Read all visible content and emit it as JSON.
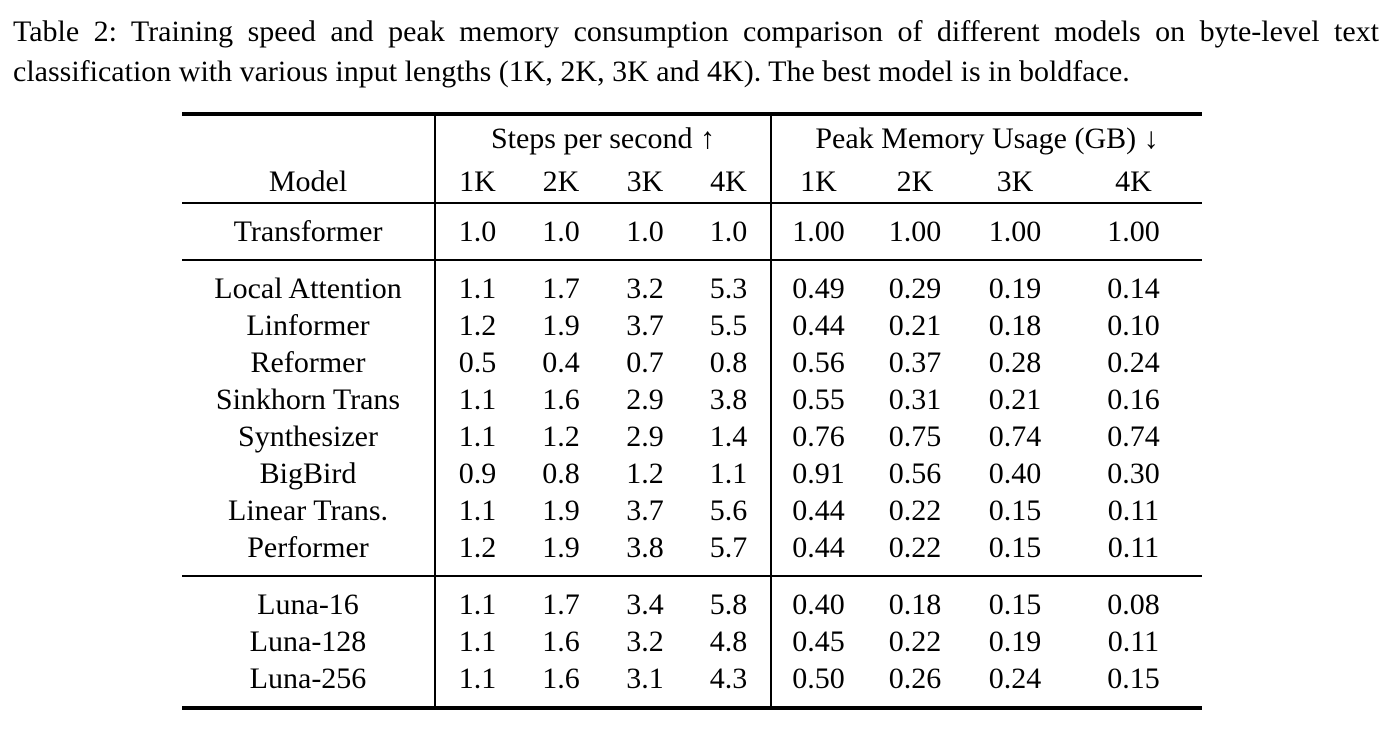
{
  "caption": "Table 2: Training speed and peak memory consumption comparison of different models on byte-level text classification with various input lengths (1K, 2K, 3K and 4K). The best model is in boldface.",
  "table": {
    "model_header": "Model",
    "group_headers": [
      "Steps per second ↑",
      "Peak Memory Usage (GB) ↓"
    ],
    "sub_headers": [
      "1K",
      "2K",
      "3K",
      "4K",
      "1K",
      "2K",
      "3K",
      "4K"
    ],
    "sections": [
      {
        "name": "baseline",
        "rows": [
          {
            "model": "Transformer",
            "values": [
              "1.0",
              "1.0",
              "1.0",
              "1.0",
              "1.00",
              "1.00",
              "1.00",
              "1.00"
            ],
            "bold": [
              false,
              false,
              false,
              false,
              false,
              false,
              false,
              false
            ]
          }
        ]
      },
      {
        "name": "efficient-attention",
        "rows": [
          {
            "model": "Local Attention",
            "values": [
              "1.1",
              "1.7",
              "3.2",
              "5.3",
              "0.49",
              "0.29",
              "0.19",
              "0.14"
            ],
            "bold": [
              false,
              false,
              false,
              false,
              false,
              false,
              false,
              false
            ]
          },
          {
            "model": "Linformer",
            "values": [
              "1.2",
              "1.9",
              "3.7",
              "5.5",
              "0.44",
              "0.21",
              "0.18",
              "0.10"
            ],
            "bold": [
              true,
              true,
              false,
              false,
              false,
              false,
              false,
              false
            ]
          },
          {
            "model": "Reformer",
            "values": [
              "0.5",
              "0.4",
              "0.7",
              "0.8",
              "0.56",
              "0.37",
              "0.28",
              "0.24"
            ],
            "bold": [
              false,
              false,
              false,
              false,
              false,
              false,
              false,
              false
            ]
          },
          {
            "model": "Sinkhorn Trans",
            "values": [
              "1.1",
              "1.6",
              "2.9",
              "3.8",
              "0.55",
              "0.31",
              "0.21",
              "0.16"
            ],
            "bold": [
              false,
              false,
              false,
              false,
              false,
              false,
              false,
              false
            ]
          },
          {
            "model": "Synthesizer",
            "values": [
              "1.1",
              "1.2",
              "2.9",
              "1.4",
              "0.76",
              "0.75",
              "0.74",
              "0.74"
            ],
            "bold": [
              false,
              false,
              false,
              false,
              false,
              false,
              false,
              false
            ]
          },
          {
            "model": "BigBird",
            "values": [
              "0.9",
              "0.8",
              "1.2",
              "1.1",
              "0.91",
              "0.56",
              "0.40",
              "0.30"
            ],
            "bold": [
              false,
              false,
              false,
              false,
              false,
              false,
              false,
              false
            ]
          },
          {
            "model": "Linear Trans.",
            "values": [
              "1.1",
              "1.9",
              "3.7",
              "5.6",
              "0.44",
              "0.22",
              "0.15",
              "0.11"
            ],
            "bold": [
              false,
              false,
              false,
              false,
              false,
              false,
              false,
              false
            ]
          },
          {
            "model": "Performer",
            "values": [
              "1.2",
              "1.9",
              "3.8",
              "5.7",
              "0.44",
              "0.22",
              "0.15",
              "0.11"
            ],
            "bold": [
              true,
              true,
              true,
              false,
              false,
              false,
              false,
              false
            ]
          }
        ]
      },
      {
        "name": "luna",
        "rows": [
          {
            "model": "Luna-16",
            "values": [
              "1.1",
              "1.7",
              "3.4",
              "5.8",
              "0.40",
              "0.18",
              "0.15",
              "0.08"
            ],
            "bold": [
              false,
              false,
              false,
              true,
              true,
              true,
              true,
              true
            ]
          },
          {
            "model": "Luna-128",
            "values": [
              "1.1",
              "1.6",
              "3.2",
              "4.8",
              "0.45",
              "0.22",
              "0.19",
              "0.11"
            ],
            "bold": [
              false,
              false,
              false,
              false,
              false,
              false,
              false,
              false
            ]
          },
          {
            "model": "Luna-256",
            "values": [
              "1.1",
              "1.6",
              "3.1",
              "4.3",
              "0.50",
              "0.26",
              "0.24",
              "0.15"
            ],
            "bold": [
              false,
              false,
              false,
              false,
              false,
              false,
              false,
              false
            ]
          }
        ]
      }
    ]
  }
}
